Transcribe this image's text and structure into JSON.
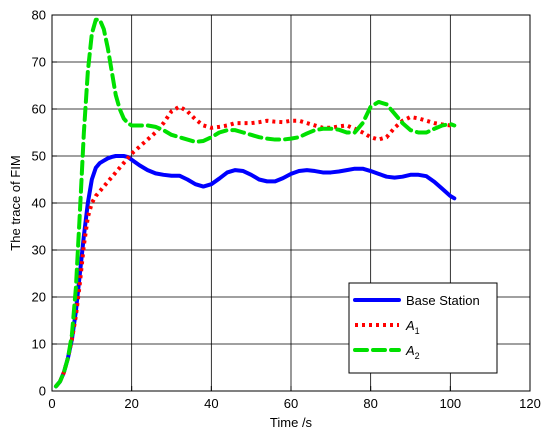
{
  "chart_data": {
    "type": "line",
    "xlabel": "Time /s",
    "ylabel": "The trace of FIM",
    "xlim": [
      0,
      120
    ],
    "ylim": [
      0,
      80
    ],
    "xticks": [
      0,
      20,
      40,
      60,
      80,
      100,
      120
    ],
    "yticks": [
      0,
      10,
      20,
      30,
      40,
      50,
      60,
      70,
      80
    ],
    "grid": true,
    "legend_position": "bottom-right",
    "series": [
      {
        "name": "Base Station",
        "name_main": "Base Station",
        "name_sub": "",
        "color": "#0000ff",
        "style": "solid",
        "x": [
          1,
          2,
          3,
          4,
          5,
          6,
          7,
          8,
          9,
          10,
          11,
          12,
          13,
          14,
          15,
          16,
          17,
          18,
          19,
          20,
          22,
          24,
          26,
          28,
          30,
          32,
          34,
          36,
          38,
          40,
          42,
          44,
          46,
          48,
          50,
          52,
          54,
          56,
          58,
          60,
          62,
          64,
          66,
          68,
          70,
          72,
          74,
          76,
          78,
          80,
          82,
          84,
          86,
          88,
          90,
          92,
          94,
          96,
          98,
          100,
          101
        ],
        "y": [
          1,
          2,
          4,
          7,
          11,
          17,
          25,
          33,
          40,
          45,
          47.5,
          48.5,
          49,
          49.5,
          49.8,
          50,
          50,
          50,
          49.8,
          49.2,
          48,
          47,
          46.3,
          46,
          45.8,
          45.8,
          45,
          44,
          43.5,
          44,
          45.2,
          46.5,
          47,
          46.8,
          46,
          45,
          44.6,
          44.6,
          45.3,
          46.2,
          46.8,
          47,
          46.8,
          46.5,
          46.5,
          46.7,
          47,
          47.3,
          47.3,
          46.8,
          46.2,
          45.6,
          45.4,
          45.6,
          46,
          46,
          45.7,
          44.5,
          43,
          41.5,
          41
        ]
      },
      {
        "name": "A1",
        "name_main": "A",
        "name_sub": "1",
        "color": "#ff0000",
        "style": "dotted",
        "x": [
          1,
          2,
          3,
          4,
          5,
          6,
          7,
          8,
          9,
          10,
          11,
          12,
          13,
          14,
          15,
          16,
          17,
          18,
          19,
          20,
          22,
          24,
          26,
          28,
          30,
          32,
          34,
          36,
          38,
          40,
          42,
          44,
          46,
          48,
          50,
          52,
          54,
          56,
          58,
          60,
          62,
          64,
          66,
          68,
          70,
          72,
          74,
          76,
          78,
          80,
          82,
          84,
          86,
          88,
          90,
          92,
          94,
          96,
          98,
          100,
          101
        ],
        "y": [
          1,
          2,
          4,
          7,
          11,
          16,
          23,
          31,
          37,
          40,
          41.5,
          42.5,
          43.5,
          44.5,
          45.5,
          46.5,
          47.5,
          48.5,
          49.5,
          50.5,
          52,
          53.5,
          55,
          57,
          59.5,
          60.5,
          59.5,
          57.8,
          56.5,
          56,
          56.2,
          56.5,
          57,
          57,
          57,
          57.2,
          57.5,
          57.3,
          57.2,
          57.5,
          57.5,
          57,
          56.5,
          56,
          56,
          56.3,
          56.5,
          55.8,
          55,
          54,
          53.5,
          54,
          56,
          57.5,
          58.3,
          58,
          57.5,
          57,
          56.7,
          56.5,
          56.5
        ]
      },
      {
        "name": "A2",
        "name_main": "A",
        "name_sub": "2",
        "color": "#00e000",
        "style": "dashed",
        "x": [
          1,
          2,
          3,
          4,
          5,
          6,
          7,
          8,
          9,
          10,
          11,
          12,
          13,
          14,
          15,
          16,
          17,
          18,
          19,
          20,
          22,
          24,
          26,
          28,
          30,
          32,
          34,
          36,
          38,
          40,
          42,
          44,
          46,
          48,
          50,
          52,
          54,
          56,
          58,
          60,
          62,
          64,
          66,
          68,
          70,
          72,
          74,
          76,
          78,
          80,
          82,
          84,
          86,
          88,
          90,
          92,
          94,
          96,
          98,
          100,
          101
        ],
        "y": [
          1,
          2,
          4,
          7,
          12,
          22,
          38,
          55,
          68,
          76,
          79,
          79,
          77,
          73,
          68,
          63,
          60,
          58,
          57,
          56.5,
          56.5,
          56.5,
          56.2,
          55.5,
          54.5,
          54,
          53.5,
          53,
          53.2,
          54,
          55,
          55.5,
          55.5,
          55,
          54.5,
          54,
          53.7,
          53.5,
          53.5,
          53.7,
          54,
          54.8,
          55.5,
          55.8,
          55.8,
          55.6,
          55,
          55,
          57,
          60.5,
          61.5,
          61,
          59,
          57,
          55.5,
          55,
          55,
          55.8,
          56.5,
          56.8,
          56.5
        ]
      }
    ]
  }
}
